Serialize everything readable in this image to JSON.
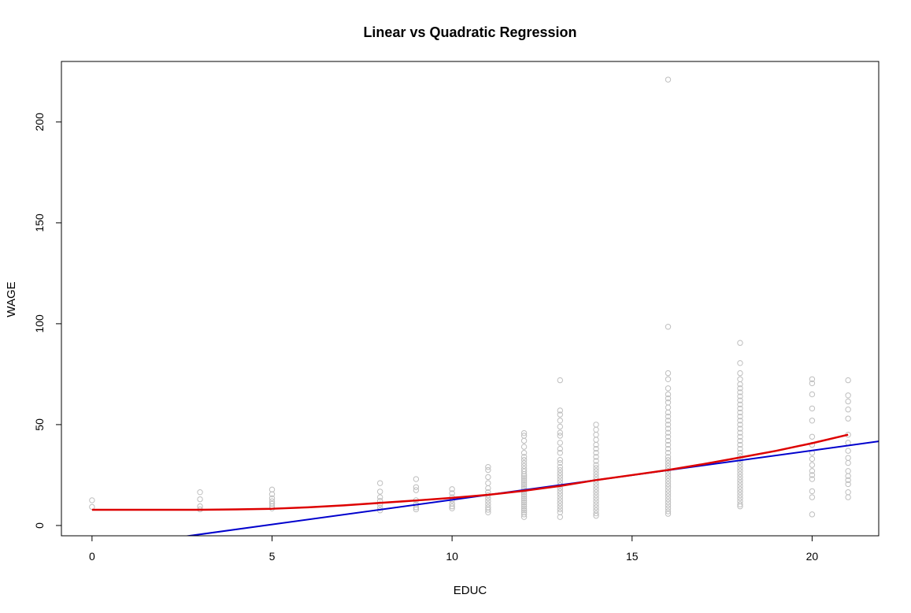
{
  "chart_data": {
    "type": "scatter",
    "title": "Linear vs Quadratic Regression",
    "xlabel": "EDUC",
    "ylabel": "WAGE",
    "xlim": [
      -0.85,
      21.85
    ],
    "ylim": [
      -5.1,
      230.0
    ],
    "xticks": [
      0,
      5,
      10,
      15,
      20
    ],
    "yticks": [
      0,
      50,
      100,
      150,
      200
    ],
    "grid": false,
    "point_color": "#bebebe",
    "points": [
      [
        0,
        12.5
      ],
      [
        0,
        9.2
      ],
      [
        3,
        16.5
      ],
      [
        3,
        13.0
      ],
      [
        3,
        9.5
      ],
      [
        3,
        8.0
      ],
      [
        5,
        17.8
      ],
      [
        5,
        15.5
      ],
      [
        5,
        13.5
      ],
      [
        5,
        12.0
      ],
      [
        5,
        10.8
      ],
      [
        5,
        9.5
      ],
      [
        5,
        8.5
      ],
      [
        8,
        21.0
      ],
      [
        8,
        16.8
      ],
      [
        8,
        14.0
      ],
      [
        8,
        12.2
      ],
      [
        8,
        10.5
      ],
      [
        8,
        8.8
      ],
      [
        8,
        7.5
      ],
      [
        9,
        23.0
      ],
      [
        9,
        19.0
      ],
      [
        9,
        17.5
      ],
      [
        9,
        12.5
      ],
      [
        9,
        10.5
      ],
      [
        9,
        9.0
      ],
      [
        9,
        8.0
      ],
      [
        10,
        18.0
      ],
      [
        10,
        16.0
      ],
      [
        10,
        14.0
      ],
      [
        10,
        12.5
      ],
      [
        10,
        10.8
      ],
      [
        10,
        9.5
      ],
      [
        10,
        8.5
      ],
      [
        11,
        29.0
      ],
      [
        11,
        27.5
      ],
      [
        11,
        24.0
      ],
      [
        11,
        21.0
      ],
      [
        11,
        18.5
      ],
      [
        11,
        16.5
      ],
      [
        11,
        15.0
      ],
      [
        11,
        13.5
      ],
      [
        11,
        12.0
      ],
      [
        11,
        10.5
      ],
      [
        11,
        9.0
      ],
      [
        11,
        7.8
      ],
      [
        11,
        6.5
      ],
      [
        12,
        45.8
      ],
      [
        12,
        44.5
      ],
      [
        12,
        42.0
      ],
      [
        12,
        39.0
      ],
      [
        12,
        36.0
      ],
      [
        12,
        34.0
      ],
      [
        12,
        32.5
      ],
      [
        12,
        31.0
      ],
      [
        12,
        29.5
      ],
      [
        12,
        28.0
      ],
      [
        12,
        26.8
      ],
      [
        12,
        25.5
      ],
      [
        12,
        24.5
      ],
      [
        12,
        23.5
      ],
      [
        12,
        22.5
      ],
      [
        12,
        21.5
      ],
      [
        12,
        20.5
      ],
      [
        12,
        19.5
      ],
      [
        12,
        18.5
      ],
      [
        12,
        17.5
      ],
      [
        12,
        16.5
      ],
      [
        12,
        15.5
      ],
      [
        12,
        14.5
      ],
      [
        12,
        13.5
      ],
      [
        12,
        12.5
      ],
      [
        12,
        11.5
      ],
      [
        12,
        10.5
      ],
      [
        12,
        9.5
      ],
      [
        12,
        8.5
      ],
      [
        12,
        7.5
      ],
      [
        12,
        6.5
      ],
      [
        12,
        5.5
      ],
      [
        12,
        4.2
      ],
      [
        13,
        72.0
      ],
      [
        13,
        57.0
      ],
      [
        13,
        55.0
      ],
      [
        13,
        52.0
      ],
      [
        13,
        49.0
      ],
      [
        13,
        46.0
      ],
      [
        13,
        44.5
      ],
      [
        13,
        41.0
      ],
      [
        13,
        38.0
      ],
      [
        13,
        36.0
      ],
      [
        13,
        32.5
      ],
      [
        13,
        31.0
      ],
      [
        13,
        29.0
      ],
      [
        13,
        27.5
      ],
      [
        13,
        26.0
      ],
      [
        13,
        24.5
      ],
      [
        13,
        23.0
      ],
      [
        13,
        21.5
      ],
      [
        13,
        20.0
      ],
      [
        13,
        18.5
      ],
      [
        13,
        17.0
      ],
      [
        13,
        15.5
      ],
      [
        13,
        14.0
      ],
      [
        13,
        12.5
      ],
      [
        13,
        11.0
      ],
      [
        13,
        9.5
      ],
      [
        13,
        8.0
      ],
      [
        13,
        6.5
      ],
      [
        13,
        4.2
      ],
      [
        14,
        50.0
      ],
      [
        14,
        47.5
      ],
      [
        14,
        45.0
      ],
      [
        14,
        42.5
      ],
      [
        14,
        40.0
      ],
      [
        14,
        38.0
      ],
      [
        14,
        36.0
      ],
      [
        14,
        34.0
      ],
      [
        14,
        32.0
      ],
      [
        14,
        30.0
      ],
      [
        14,
        28.5
      ],
      [
        14,
        27.0
      ],
      [
        14,
        25.5
      ],
      [
        14,
        24.0
      ],
      [
        14,
        22.5
      ],
      [
        14,
        21.0
      ],
      [
        14,
        19.5
      ],
      [
        14,
        18.0
      ],
      [
        14,
        16.5
      ],
      [
        14,
        15.0
      ],
      [
        14,
        13.5
      ],
      [
        14,
        12.0
      ],
      [
        14,
        10.5
      ],
      [
        14,
        9.0
      ],
      [
        14,
        7.5
      ],
      [
        14,
        6.0
      ],
      [
        14,
        4.8
      ],
      [
        16,
        221.0
      ],
      [
        16,
        98.5
      ],
      [
        16,
        75.5
      ],
      [
        16,
        72.5
      ],
      [
        16,
        68.0
      ],
      [
        16,
        65.0
      ],
      [
        16,
        63.0
      ],
      [
        16,
        61.0
      ],
      [
        16,
        58.5
      ],
      [
        16,
        56.0
      ],
      [
        16,
        54.0
      ],
      [
        16,
        52.0
      ],
      [
        16,
        50.0
      ],
      [
        16,
        48.0
      ],
      [
        16,
        46.0
      ],
      [
        16,
        44.0
      ],
      [
        16,
        42.0
      ],
      [
        16,
        40.0
      ],
      [
        16,
        38.0
      ],
      [
        16,
        36.0
      ],
      [
        16,
        34.0
      ],
      [
        16,
        32.5
      ],
      [
        16,
        31.0
      ],
      [
        16,
        29.5
      ],
      [
        16,
        28.0
      ],
      [
        16,
        26.5
      ],
      [
        16,
        25.0
      ],
      [
        16,
        23.5
      ],
      [
        16,
        22.0
      ],
      [
        16,
        20.5
      ],
      [
        16,
        19.0
      ],
      [
        16,
        17.5
      ],
      [
        16,
        16.0
      ],
      [
        16,
        14.5
      ],
      [
        16,
        13.0
      ],
      [
        16,
        11.5
      ],
      [
        16,
        10.0
      ],
      [
        16,
        8.5
      ],
      [
        16,
        7.0
      ],
      [
        16,
        5.8
      ],
      [
        18,
        90.5
      ],
      [
        18,
        80.5
      ],
      [
        18,
        75.5
      ],
      [
        18,
        72.5
      ],
      [
        18,
        70.0
      ],
      [
        18,
        68.0
      ],
      [
        18,
        66.0
      ],
      [
        18,
        64.0
      ],
      [
        18,
        62.0
      ],
      [
        18,
        60.0
      ],
      [
        18,
        58.0
      ],
      [
        18,
        56.0
      ],
      [
        18,
        54.0
      ],
      [
        18,
        52.0
      ],
      [
        18,
        50.0
      ],
      [
        18,
        48.0
      ],
      [
        18,
        46.0
      ],
      [
        18,
        44.0
      ],
      [
        18,
        42.0
      ],
      [
        18,
        40.0
      ],
      [
        18,
        38.0
      ],
      [
        18,
        36.0
      ],
      [
        18,
        34.5
      ],
      [
        18,
        33.0
      ],
      [
        18,
        31.5
      ],
      [
        18,
        30.0
      ],
      [
        18,
        28.5
      ],
      [
        18,
        27.0
      ],
      [
        18,
        25.5
      ],
      [
        18,
        24.0
      ],
      [
        18,
        22.5
      ],
      [
        18,
        21.0
      ],
      [
        18,
        19.5
      ],
      [
        18,
        18.0
      ],
      [
        18,
        16.5
      ],
      [
        18,
        15.0
      ],
      [
        18,
        13.5
      ],
      [
        18,
        12.0
      ],
      [
        18,
        10.5
      ],
      [
        18,
        9.5
      ],
      [
        20,
        72.5
      ],
      [
        20,
        70.5
      ],
      [
        20,
        65.0
      ],
      [
        20,
        58.0
      ],
      [
        20,
        52.0
      ],
      [
        20,
        44.0
      ],
      [
        20,
        40.0
      ],
      [
        20,
        36.0
      ],
      [
        20,
        33.0
      ],
      [
        20,
        30.0
      ],
      [
        20,
        27.0
      ],
      [
        20,
        25.0
      ],
      [
        20,
        23.0
      ],
      [
        20,
        17.0
      ],
      [
        20,
        14.0
      ],
      [
        20,
        5.5
      ],
      [
        21,
        72.0
      ],
      [
        21,
        64.5
      ],
      [
        21,
        61.5
      ],
      [
        21,
        57.5
      ],
      [
        21,
        53.0
      ],
      [
        21,
        45.0
      ],
      [
        21,
        41.0
      ],
      [
        21,
        37.0
      ],
      [
        21,
        33.5
      ],
      [
        21,
        31.0
      ],
      [
        21,
        27.0
      ],
      [
        21,
        24.5
      ],
      [
        21,
        22.5
      ],
      [
        21,
        20.5
      ],
      [
        21,
        16.5
      ],
      [
        21,
        14.0
      ]
    ],
    "series": [
      {
        "type": "line",
        "color": "#0000cd",
        "width": 2,
        "x": [
          -0.85,
          21.85
        ],
        "y": [
          -13.8,
          41.7
        ]
      },
      {
        "type": "line",
        "color": "#dd0000",
        "width": 2.5,
        "x": [
          0,
          1,
          2,
          3,
          4,
          5,
          6,
          7,
          8,
          9,
          10,
          11,
          12,
          13,
          14,
          15,
          16,
          17,
          18,
          19,
          20,
          21
        ],
        "y": [
          7.8,
          7.8,
          7.8,
          7.8,
          8.0,
          8.3,
          9.0,
          10.0,
          11.2,
          12.4,
          13.7,
          15.2,
          17.2,
          19.6,
          22.5,
          25.0,
          27.5,
          30.5,
          33.7,
          37.0,
          40.8,
          45.0
        ]
      }
    ]
  }
}
